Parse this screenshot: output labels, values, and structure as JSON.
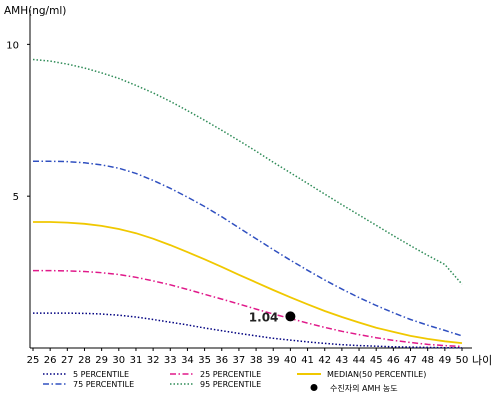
{
  "chart_data": {
    "type": "line",
    "ylabel": "AMH(ng/ml)",
    "xlabel": "나이",
    "x": [
      25,
      26,
      27,
      28,
      29,
      30,
      31,
      32,
      33,
      34,
      35,
      36,
      37,
      38,
      39,
      40,
      41,
      42,
      43,
      44,
      45,
      46,
      47,
      48,
      49,
      50
    ],
    "y_ticks": [
      5,
      10
    ],
    "ylim": [
      0,
      11
    ],
    "xlim": [
      25,
      50
    ],
    "grid": false,
    "legend_position": "bottom",
    "series": [
      {
        "name": "5 PERCENTILE",
        "color": "#000080",
        "dash": "dotted",
        "values": [
          1.15,
          1.15,
          1.15,
          1.14,
          1.12,
          1.08,
          1.02,
          0.94,
          0.85,
          0.76,
          0.66,
          0.57,
          0.48,
          0.4,
          0.32,
          0.26,
          0.2,
          0.15,
          0.11,
          0.08,
          0.06,
          0.04,
          0.03,
          0.02,
          0.01,
          0.01
        ]
      },
      {
        "name": "25 PERCENTILE",
        "color": "#e0198a",
        "dash": "dashdot",
        "values": [
          2.55,
          2.55,
          2.54,
          2.52,
          2.48,
          2.42,
          2.33,
          2.21,
          2.08,
          1.93,
          1.77,
          1.61,
          1.45,
          1.28,
          1.12,
          0.97,
          0.82,
          0.68,
          0.55,
          0.44,
          0.34,
          0.25,
          0.18,
          0.12,
          0.08,
          0.05
        ]
      },
      {
        "name": "MEDIAN(50 PERCENTILE)",
        "color": "#f0c800",
        "dash": "solid",
        "values": [
          4.15,
          4.15,
          4.13,
          4.09,
          4.02,
          3.92,
          3.78,
          3.6,
          3.39,
          3.16,
          2.92,
          2.67,
          2.41,
          2.16,
          1.91,
          1.67,
          1.44,
          1.22,
          1.02,
          0.84,
          0.67,
          0.53,
          0.4,
          0.3,
          0.22,
          0.16
        ]
      },
      {
        "name": "75 PERCENTILE",
        "color": "#3050c0",
        "dash": "dashdot",
        "values": [
          6.15,
          6.15,
          6.14,
          6.1,
          6.03,
          5.92,
          5.75,
          5.52,
          5.26,
          4.97,
          4.66,
          4.32,
          3.96,
          3.6,
          3.24,
          2.89,
          2.56,
          2.24,
          1.94,
          1.66,
          1.4,
          1.16,
          0.94,
          0.75,
          0.58,
          0.4
        ]
      },
      {
        "name": "95 PERCENTILE",
        "color": "#2e8b57",
        "dash": "dotted",
        "values": [
          9.5,
          9.45,
          9.35,
          9.22,
          9.06,
          8.88,
          8.65,
          8.4,
          8.12,
          7.82,
          7.5,
          7.17,
          6.83,
          6.48,
          6.12,
          5.77,
          5.42,
          5.07,
          4.72,
          4.38,
          4.04,
          3.7,
          3.37,
          3.05,
          2.75,
          2.1
        ]
      }
    ],
    "patient": {
      "legend_label": "수진자의 AMH 농도",
      "x": 40,
      "y": 1.04,
      "label": "1.04",
      "color": "#000000"
    }
  }
}
